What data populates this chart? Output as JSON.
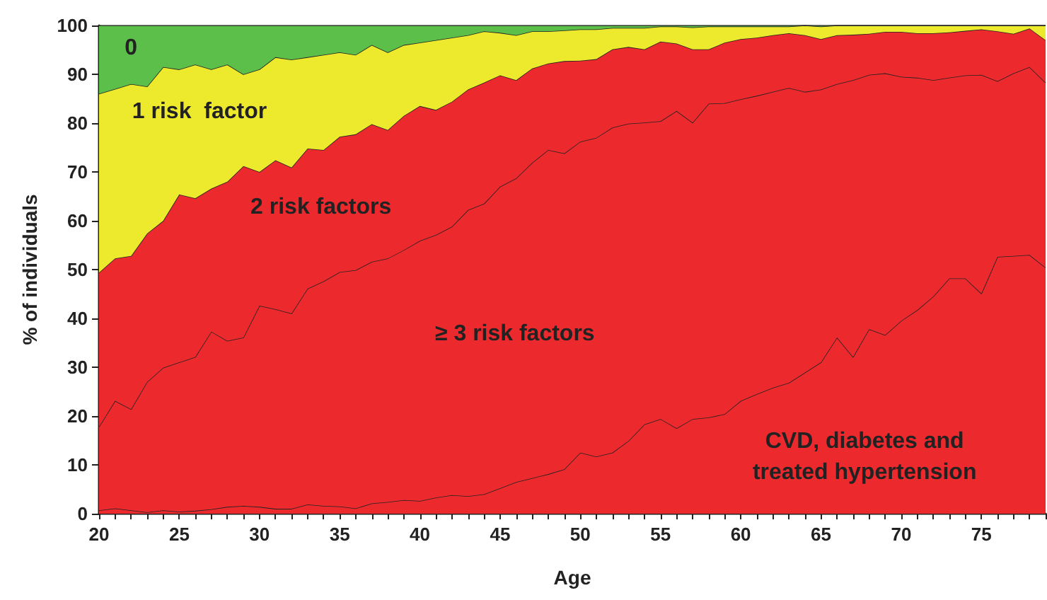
{
  "chart_data": {
    "type": "area",
    "stacked": true,
    "xlabel": "Age",
    "ylabel": "% of individuals",
    "xlim": [
      20,
      79
    ],
    "xticks": [
      20,
      25,
      30,
      35,
      40,
      45,
      50,
      55,
      60,
      65,
      70,
      75
    ],
    "ylim": [
      0,
      100
    ],
    "yticks": [
      0,
      10,
      20,
      30,
      40,
      50,
      60,
      70,
      80,
      90,
      100
    ],
    "grid": false,
    "legend": false,
    "marker": "none",
    "x": [
      20,
      21,
      22,
      23,
      24,
      25,
      26,
      27,
      28,
      29,
      30,
      31,
      32,
      33,
      34,
      35,
      36,
      37,
      38,
      39,
      40,
      41,
      42,
      43,
      44,
      45,
      46,
      47,
      48,
      49,
      50,
      51,
      52,
      53,
      54,
      55,
      56,
      57,
      58,
      59,
      60,
      61,
      62,
      63,
      64,
      65,
      66,
      67,
      68,
      69,
      70,
      71,
      72,
      73,
      74,
      75,
      76,
      77,
      78,
      79
    ],
    "series": [
      {
        "name": "CVD, diabetes and treated hypertension",
        "color": "#ec2a2e",
        "values": [
          0.7,
          1.1,
          0.7,
          0.3,
          0.7,
          0.4,
          0.6,
          0.9,
          1.4,
          1.6,
          1.4,
          1.0,
          1.0,
          1.9,
          1.6,
          1.5,
          1.1,
          2.1,
          2.4,
          2.8,
          2.6,
          3.3,
          3.8,
          3.6,
          4.0,
          5.2,
          6.5,
          7.3,
          8.1,
          9.1,
          12.5,
          11.7,
          12.5,
          14.9,
          18.3,
          19.4,
          17.5,
          19.4,
          19.7,
          20.4,
          23.1,
          24.5,
          25.8,
          26.8,
          28.9,
          31.0,
          36.1,
          32.1,
          37.8,
          36.6,
          39.5,
          41.7,
          44.5,
          48.2,
          48.2,
          45.1,
          52.6,
          52.8,
          53.0,
          50.4
        ]
      },
      {
        "name": "≥ 3 risk factors",
        "color": "#ec2a2e",
        "values": [
          17.1,
          22.0,
          20.7,
          26.7,
          29.2,
          30.6,
          31.5,
          36.4,
          34.0,
          34.5,
          41.2,
          40.9,
          40.0,
          44.2,
          46.0,
          48.0,
          48.8,
          49.5,
          49.9,
          51.2,
          53.3,
          53.8,
          55.0,
          58.6,
          59.5,
          61.8,
          62.2,
          64.6,
          66.4,
          64.7,
          63.7,
          65.3,
          66.6,
          65.0,
          61.8,
          61.0,
          65.0,
          60.7,
          64.3,
          63.7,
          61.8,
          61.1,
          60.6,
          60.4,
          57.5,
          55.9,
          51.9,
          56.7,
          52.1,
          53.6,
          50.0,
          47.6,
          44.3,
          41.1,
          41.6,
          44.8,
          36.0,
          37.4,
          38.5,
          37.9
        ]
      },
      {
        "name": "2 risk factors",
        "color": "#ec2a2e",
        "values": [
          31.6,
          29.2,
          31.4,
          30.4,
          30.1,
          34.4,
          32.5,
          29.3,
          32.6,
          35.1,
          27.4,
          30.5,
          29.9,
          28.7,
          26.9,
          27.7,
          27.8,
          28.2,
          26.3,
          27.5,
          27.6,
          25.6,
          25.6,
          24.7,
          24.8,
          22.8,
          20.1,
          19.3,
          17.7,
          18.9,
          16.6,
          16.1,
          16.0,
          15.7,
          15.0,
          16.3,
          13.8,
          15.0,
          11.1,
          12.4,
          12.3,
          11.9,
          11.6,
          11.2,
          11.6,
          10.3,
          10.0,
          9.3,
          8.4,
          8.5,
          9.2,
          9.1,
          9.6,
          9.3,
          9.1,
          9.3,
          10.2,
          8.1,
          7.9,
          8.7
        ]
      },
      {
        "name": "1 risk  factor",
        "color": "#ede92c",
        "values": [
          36.6,
          34.7,
          35.2,
          30.1,
          31.5,
          25.6,
          27.4,
          24.4,
          24.0,
          18.8,
          21.0,
          21.1,
          22.1,
          18.7,
          19.5,
          17.3,
          16.3,
          16.2,
          15.9,
          14.5,
          13.0,
          14.3,
          13.1,
          11.1,
          10.5,
          8.7,
          9.2,
          7.6,
          6.6,
          6.3,
          6.4,
          6.1,
          4.4,
          3.9,
          4.4,
          3.1,
          3.5,
          4.5,
          4.7,
          3.3,
          2.6,
          2.3,
          1.8,
          1.4,
          2.0,
          2.6,
          2.0,
          1.9,
          1.7,
          1.3,
          1.3,
          1.6,
          1.6,
          1.4,
          1.1,
          0.8,
          1.2,
          1.7,
          0.6,
          3.0
        ]
      },
      {
        "name": "0",
        "color": "#5bbf4a",
        "values": [
          14,
          13,
          12,
          12.5,
          8.5,
          9,
          8,
          9,
          8,
          10,
          9,
          6.5,
          7,
          6.5,
          6,
          5.5,
          6,
          4,
          5.5,
          4,
          3.5,
          3,
          2.5,
          2,
          1.2,
          1.5,
          2,
          1.2,
          1.2,
          1,
          0.8,
          0.8,
          0.5,
          0.5,
          0.5,
          0.2,
          0.2,
          0.4,
          0.2,
          0.2,
          0.2,
          0.2,
          0.2,
          0.2,
          0,
          0.2,
          0,
          0,
          0,
          0,
          0,
          0,
          0,
          0,
          0,
          0,
          0,
          0,
          0,
          0
        ]
      }
    ]
  }
}
